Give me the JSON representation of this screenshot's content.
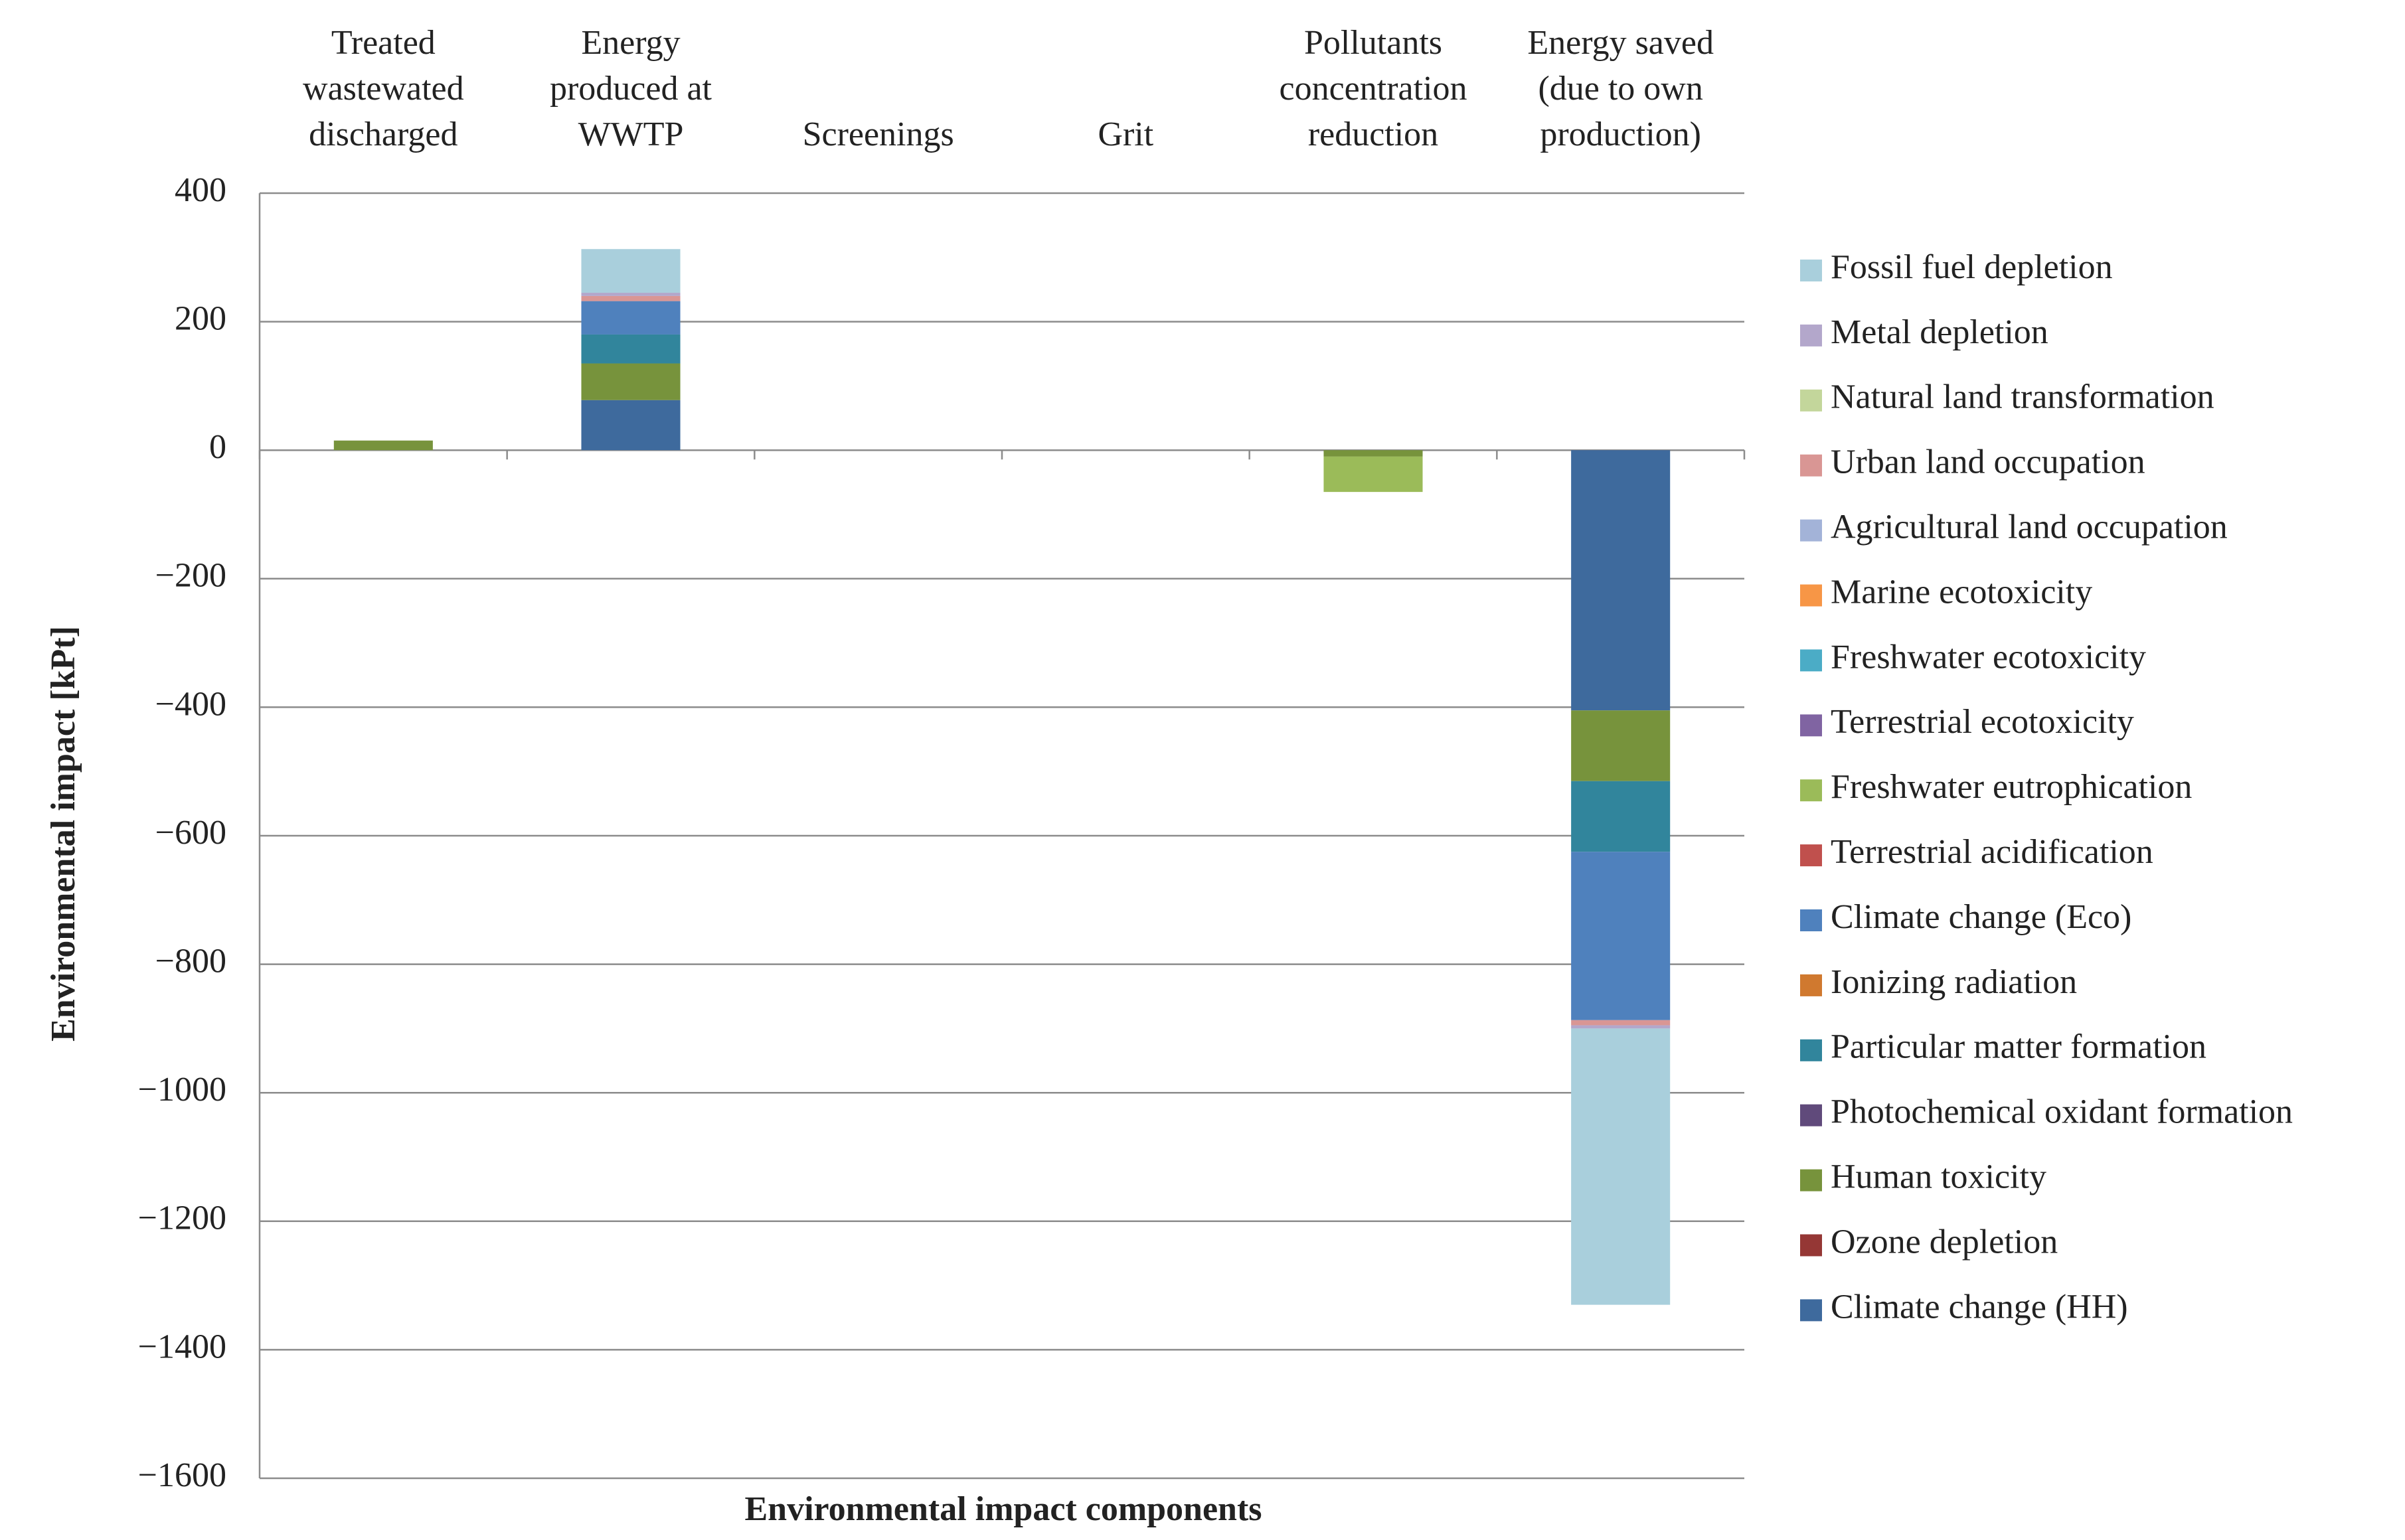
{
  "chart_data": {
    "type": "stacked-bar",
    "y_label": "Environmental impact [kPt]",
    "x_label": "Environmental impact components",
    "categories": [
      "Treated\nwastewated\ndischarged",
      "Energy\nproduced at\nWWTP",
      "Screenings",
      "Grit",
      "Pollutants\nconcentration\nreduction",
      "Energy saved\n(due to own\nproduction)"
    ],
    "ylim": [
      -1600,
      400
    ],
    "yticks": [
      400,
      200,
      0,
      {
        "value": -200,
        "label": "−200"
      },
      {
        "value": -400,
        "label": "−400"
      },
      {
        "value": -600,
        "label": "−600"
      },
      {
        "value": -800,
        "label": "−800"
      },
      {
        "value": -1000,
        "label": "−1000"
      },
      {
        "value": -1200,
        "label": "−1200"
      },
      {
        "value": -1400,
        "label": "−1400"
      },
      {
        "value": -1600,
        "label": "−1600"
      }
    ],
    "grid": true,
    "series": [
      {
        "name": "Climate change (HH)",
        "color": "#3e6a9d",
        "values": [
          0,
          78,
          0,
          0,
          0,
          -405
        ]
      },
      {
        "name": "Ozone depletion",
        "color": "#953735",
        "values": [
          0,
          0,
          0,
          0,
          0,
          0
        ]
      },
      {
        "name": "Human toxicity",
        "color": "#77933c",
        "values": [
          15,
          57,
          0,
          0,
          -10,
          -110
        ]
      },
      {
        "name": "Photochemical oxidant formation",
        "color": "#604a7b",
        "values": [
          0,
          0,
          0,
          0,
          0,
          0
        ]
      },
      {
        "name": "Particular matter formation",
        "color": "#31859c",
        "values": [
          0,
          45,
          0,
          0,
          0,
          -110
        ]
      },
      {
        "name": "Ionizing radiation",
        "color": "#d0792f",
        "values": [
          0,
          0,
          0,
          0,
          0,
          0
        ]
      },
      {
        "name": "Climate change (Eco)",
        "color": "#4f81bd",
        "values": [
          0,
          52,
          0,
          0,
          0,
          -262
        ]
      },
      {
        "name": "Terrestrial acidification",
        "color": "#c0504d",
        "values": [
          0,
          0,
          0,
          0,
          0,
          0
        ]
      },
      {
        "name": "Freshwater eutrophication",
        "color": "#9bbb59",
        "values": [
          0,
          0,
          0,
          0,
          -55,
          0
        ]
      },
      {
        "name": "Terrestrial ecotoxicity",
        "color": "#8064a2",
        "values": [
          0,
          0,
          0,
          0,
          0,
          0
        ]
      },
      {
        "name": "Freshwater ecotoxicity",
        "color": "#4bacc6",
        "values": [
          0,
          0,
          0,
          0,
          0,
          0
        ]
      },
      {
        "name": "Marine ecotoxicity",
        "color": "#f79646",
        "values": [
          0,
          0,
          0,
          0,
          0,
          0
        ]
      },
      {
        "name": "Agricultural land occupation",
        "color": "#a3b3d8",
        "values": [
          0,
          0,
          0,
          0,
          0,
          0
        ]
      },
      {
        "name": "Urban land occupation",
        "color": "#d99694",
        "values": [
          0,
          8,
          0,
          0,
          0,
          -8
        ]
      },
      {
        "name": "Natural land transformation",
        "color": "#c3d69b",
        "values": [
          0,
          0,
          0,
          0,
          0,
          0
        ]
      },
      {
        "name": "Metal depletion",
        "color": "#b3a7cb",
        "values": [
          0,
          5,
          0,
          0,
          0,
          -5
        ]
      },
      {
        "name": "Fossil fuel depletion",
        "color": "#a9cfdc",
        "values": [
          0,
          68,
          0,
          0,
          0,
          -430
        ]
      }
    ]
  }
}
